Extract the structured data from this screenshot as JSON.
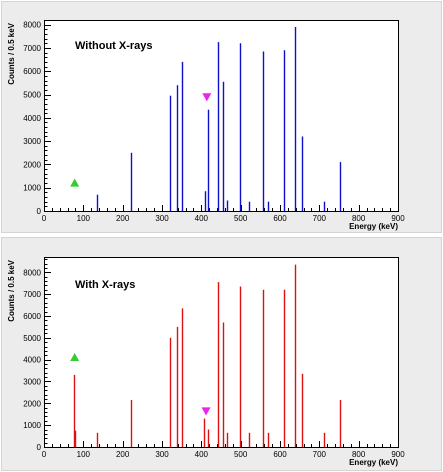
{
  "chart_data": [
    {
      "type": "bar",
      "title": "Without X-rays",
      "xlabel": "Energy (keV)",
      "ylabel": "Counts / 0.5 keV",
      "xlim": [
        0,
        900
      ],
      "ylim": [
        0,
        8200
      ],
      "x_ticks": [
        0,
        100,
        200,
        300,
        400,
        500,
        600,
        700,
        800,
        900
      ],
      "y_ticks": [
        0,
        1000,
        2000,
        3000,
        4000,
        5000,
        6000,
        7000,
        8000
      ],
      "bar_color": "#1010cc",
      "lines": [
        {
          "x": 136,
          "y": 700
        },
        {
          "x": 220,
          "y": 2500
        },
        {
          "x": 320,
          "y": 4950
        },
        {
          "x": 338,
          "y": 5400
        },
        {
          "x": 352,
          "y": 6400
        },
        {
          "x": 410,
          "y": 850
        },
        {
          "x": 418,
          "y": 4350
        },
        {
          "x": 443,
          "y": 7250
        },
        {
          "x": 454,
          "y": 5550
        },
        {
          "x": 465,
          "y": 450
        },
        {
          "x": 498,
          "y": 7200
        },
        {
          "x": 520,
          "y": 400
        },
        {
          "x": 558,
          "y": 6850
        },
        {
          "x": 570,
          "y": 400
        },
        {
          "x": 610,
          "y": 6900
        },
        {
          "x": 639,
          "y": 7900
        },
        {
          "x": 655,
          "y": 3200
        },
        {
          "x": 712,
          "y": 400
        },
        {
          "x": 752,
          "y": 2100
        }
      ],
      "markers": [
        {
          "shape": "triangle-up",
          "x": 78,
          "y": 1200,
          "color": "#33cc33"
        },
        {
          "shape": "triangle-down",
          "x": 414,
          "y": 4900,
          "color": "#ee22ee"
        }
      ]
    },
    {
      "type": "bar",
      "title": "With X-rays",
      "xlabel": "Energy (keV)",
      "ylabel": "Counts / 0.5 keV",
      "xlim": [
        0,
        900
      ],
      "ylim": [
        0,
        8700
      ],
      "x_ticks": [
        0,
        100,
        200,
        300,
        400,
        500,
        600,
        700,
        800,
        900
      ],
      "y_ticks": [
        0,
        1000,
        2000,
        3000,
        4000,
        5000,
        6000,
        7000,
        8000
      ],
      "bar_color": "#dd1111",
      "lines": [
        {
          "x": 77,
          "y": 3300
        },
        {
          "x": 80,
          "y": 750
        },
        {
          "x": 136,
          "y": 650
        },
        {
          "x": 220,
          "y": 2150
        },
        {
          "x": 320,
          "y": 5000
        },
        {
          "x": 338,
          "y": 5500
        },
        {
          "x": 352,
          "y": 6350
        },
        {
          "x": 408,
          "y": 1300
        },
        {
          "x": 418,
          "y": 800
        },
        {
          "x": 443,
          "y": 7550
        },
        {
          "x": 454,
          "y": 5700
        },
        {
          "x": 465,
          "y": 650
        },
        {
          "x": 498,
          "y": 7350
        },
        {
          "x": 520,
          "y": 650
        },
        {
          "x": 558,
          "y": 7200
        },
        {
          "x": 570,
          "y": 650
        },
        {
          "x": 610,
          "y": 7200
        },
        {
          "x": 639,
          "y": 8350
        },
        {
          "x": 655,
          "y": 3350
        },
        {
          "x": 712,
          "y": 650
        },
        {
          "x": 752,
          "y": 2150
        }
      ],
      "markers": [
        {
          "shape": "triangle-up",
          "x": 78,
          "y": 4100,
          "color": "#33cc33"
        },
        {
          "shape": "triangle-down",
          "x": 412,
          "y": 1650,
          "color": "#ee22ee"
        }
      ]
    }
  ]
}
